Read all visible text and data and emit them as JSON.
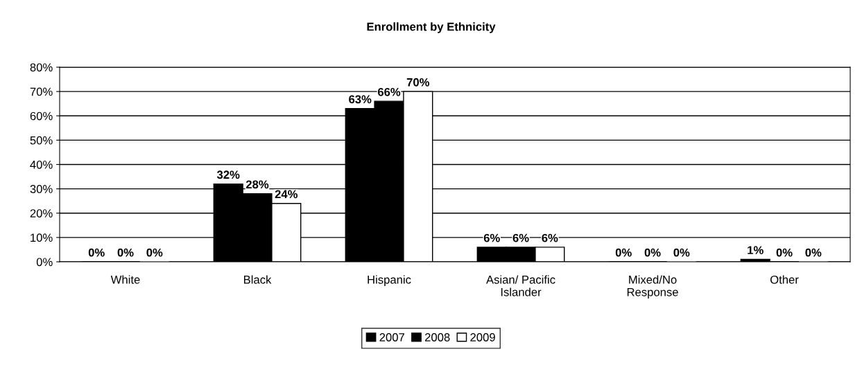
{
  "chart_data": {
    "type": "bar",
    "title": "Enrollment by Ethnicity",
    "categories": [
      "White",
      "Black",
      "Hispanic",
      "Asian/ Pacific\nIslander",
      "Mixed/No\nResponse",
      "Other"
    ],
    "series": [
      {
        "name": "2007",
        "color": "#000000",
        "values": [
          0,
          32,
          63,
          6,
          0,
          1
        ],
        "value_labels": [
          "0%",
          "32%",
          "63%",
          "6%",
          "0%",
          "1%"
        ]
      },
      {
        "name": "2008",
        "color": "#000000",
        "values": [
          0,
          28,
          66,
          6,
          0,
          0
        ],
        "value_labels": [
          "0%",
          "28%",
          "66%",
          "6%",
          "0%",
          "0%"
        ]
      },
      {
        "name": "2009",
        "color": "#ffffff",
        "values": [
          0,
          24,
          70,
          6,
          0,
          0
        ],
        "value_labels": [
          "0%",
          "24%",
          "70%",
          "6%",
          "0%",
          "0%"
        ]
      }
    ],
    "ylim": [
      0,
      80
    ],
    "yticks": [
      {
        "value": 0,
        "label": "0%"
      },
      {
        "value": 10,
        "label": "10%"
      },
      {
        "value": 20,
        "label": "20%"
      },
      {
        "value": 30,
        "label": "30%"
      },
      {
        "value": 40,
        "label": "40%"
      },
      {
        "value": 50,
        "label": "50%"
      },
      {
        "value": 60,
        "label": "60%"
      },
      {
        "value": 70,
        "label": "70%"
      },
      {
        "value": 80,
        "label": "80%"
      }
    ],
    "grid": "y",
    "legend": "bottom"
  }
}
